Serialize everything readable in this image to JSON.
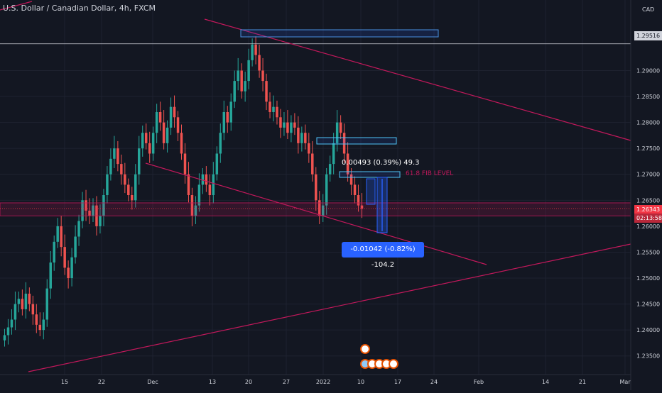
{
  "header": {
    "symbol": "U.S. Dollar / Canadian Dollar",
    "sep1": ", ",
    "timeframe": "4h",
    "sep2": ", ",
    "exchange": "FXCM"
  },
  "price_axis": {
    "currency": "CAD",
    "ticks": [
      "1.29000",
      "1.28500",
      "1.28000",
      "1.27500",
      "1.27000",
      "1.26500",
      "1.26000",
      "1.25500",
      "1.25000",
      "1.24500",
      "1.24000",
      "1.23500"
    ],
    "tick_values": [
      1.29,
      1.285,
      1.28,
      1.275,
      1.27,
      1.265,
      1.26,
      1.255,
      1.25,
      1.245,
      1.24,
      1.235
    ],
    "marker_white": "1.29516",
    "marker_last": "1.26343",
    "marker_countdown": "02:13:58"
  },
  "time_axis": {
    "labels": [
      "15",
      "22",
      "Dec",
      "13",
      "20",
      "27",
      "2022",
      "10",
      "17",
      "24",
      "Feb",
      "14",
      "21",
      "Mar"
    ]
  },
  "annotations": {
    "measure_up": "0.00493 (0.39%) 49.3",
    "measure_down": "-0.01042 (-0.82%) -104.2",
    "fib_label": "61.8 FIB LEVEL"
  },
  "colors": {
    "background": "#131722",
    "up": "#26a69a",
    "down": "#ef5350",
    "trendline": "#c2185b",
    "measure": "#2962ff",
    "grid": "#1e2230"
  },
  "chart_data": {
    "type": "candlestick",
    "title": "U.S. Dollar / Canadian Dollar, 4h, FXCM",
    "xlabel": "",
    "ylabel": "",
    "ylim": [
      1.2325,
      1.2995
    ],
    "x_axis_labels": [
      "15",
      "22",
      "Dec",
      "13",
      "20",
      "27",
      "2022",
      "10",
      "17",
      "24",
      "Feb",
      "14",
      "21",
      "Mar"
    ],
    "last_price": 1.26343,
    "horizontal_line": 1.29516,
    "grid": true,
    "close_series": [
      1.239,
      1.2405,
      1.242,
      1.245,
      1.246,
      1.244,
      1.247,
      1.245,
      1.243,
      1.241,
      1.24,
      1.242,
      1.248,
      1.253,
      1.257,
      1.26,
      1.256,
      1.252,
      1.25,
      1.254,
      1.258,
      1.261,
      1.265,
      1.263,
      1.262,
      1.264,
      1.26,
      1.262,
      1.266,
      1.27,
      1.273,
      1.275,
      1.272,
      1.27,
      1.268,
      1.266,
      1.265,
      1.27,
      1.275,
      1.278,
      1.276,
      1.274,
      1.278,
      1.282,
      1.28,
      1.276,
      1.279,
      1.283,
      1.281,
      1.278,
      1.274,
      1.27,
      1.266,
      1.262,
      1.264,
      1.268,
      1.27,
      1.268,
      1.266,
      1.27,
      1.274,
      1.278,
      1.282,
      1.28,
      1.284,
      1.288,
      1.29,
      1.286,
      1.288,
      1.292,
      1.295,
      1.293,
      1.29,
      1.288,
      1.284,
      1.282,
      1.283,
      1.281,
      1.279,
      1.28,
      1.278,
      1.28,
      1.279,
      1.276,
      1.278,
      1.276,
      1.274,
      1.27,
      1.265,
      1.262,
      1.264,
      1.27,
      1.272,
      1.276,
      1.28,
      1.278,
      1.274,
      1.27,
      1.268,
      1.266,
      1.264,
      1.2634
    ],
    "fib_level_618": 1.2695,
    "measure_up": {
      "change": 0.00493,
      "percent": 0.39,
      "pips": 49.3
    },
    "measure_down": {
      "change": -0.01042,
      "percent": -0.82,
      "pips": -104.2
    }
  }
}
